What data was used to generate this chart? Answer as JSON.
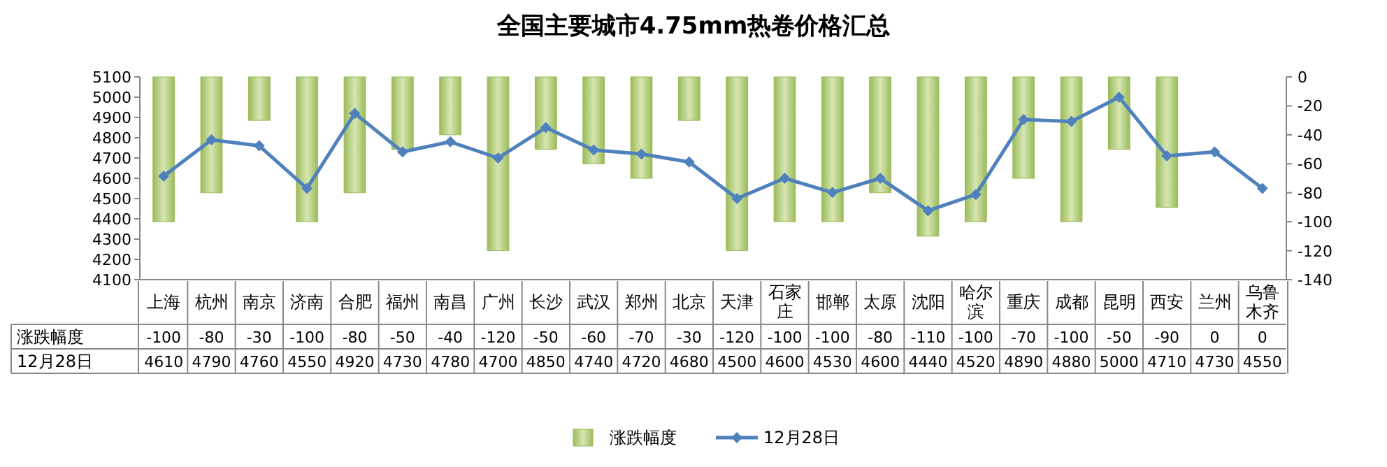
{
  "chart_data": {
    "type": "bar",
    "title": "全国主要城市4.75mm热卷价格汇总",
    "categories": [
      "上海",
      "杭州",
      "南京",
      "济南",
      "合肥",
      "福州",
      "南昌",
      "广州",
      "长沙",
      "武汉",
      "郑州",
      "北京",
      "天津",
      "石家庄",
      "邯郸",
      "太原",
      "沈阳",
      "哈尔滨",
      "重庆",
      "成都",
      "昆明",
      "西安",
      "兰州",
      "乌鲁木齐"
    ],
    "series": [
      {
        "name": "涨跌幅度",
        "type": "bar",
        "axis": "y2",
        "color": "#9bbb59",
        "values": [
          -100,
          -80,
          -30,
          -100,
          -80,
          -50,
          -40,
          -120,
          -50,
          -60,
          -70,
          -30,
          -120,
          -100,
          -100,
          -80,
          -110,
          -100,
          -70,
          -100,
          -50,
          -90,
          0,
          0
        ]
      },
      {
        "name": "12月28日",
        "type": "line",
        "color": "#4f81bd",
        "values": [
          4610,
          4790,
          4760,
          4550,
          4920,
          4730,
          4780,
          4700,
          4850,
          4740,
          4720,
          4680,
          4500,
          4600,
          4530,
          4600,
          4440,
          4520,
          4890,
          4880,
          5000,
          4710,
          4730,
          4550
        ]
      }
    ],
    "ylim": [
      4100,
      5100
    ],
    "yticks": [
      4100,
      4200,
      4300,
      4400,
      4500,
      4600,
      4700,
      4800,
      4900,
      5000,
      5100
    ],
    "y2lim": [
      -140,
      0
    ],
    "y2ticks": [
      -140,
      -120,
      -100,
      -80,
      -60,
      -40,
      -20,
      0
    ],
    "marker": "diamond",
    "data_labels": true,
    "legend": "bottom"
  }
}
